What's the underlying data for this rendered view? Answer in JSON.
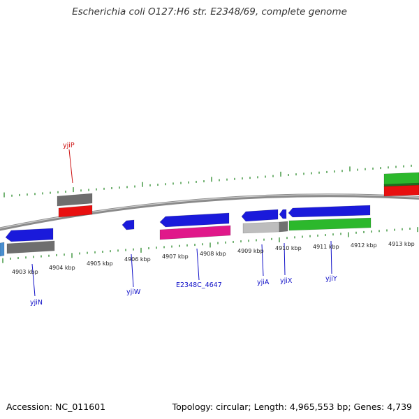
{
  "title": "Escherichia coli O127:H6 str. E2348/69, complete genome",
  "footer": {
    "accession": "Accession: NC_011601",
    "stats": "Topology: circular; Length: 4,965,553 bp; Genes: 4,739"
  },
  "colors": {
    "tick": "#2a8a2a",
    "backbone": "#7a7a7a",
    "blue": "#1a1adb",
    "gray": "#6e6e6e",
    "light_gray": "#bdbdbd",
    "red": "#e81010",
    "magenta": "#e0188a",
    "green": "#2cb82c",
    "label_blue": "#1010c8",
    "label_red": "#cc1010"
  },
  "kbp_labels": [
    {
      "id": "4903",
      "text": "4903 kbp"
    },
    {
      "id": "4904",
      "text": "4904 kbp"
    },
    {
      "id": "4905",
      "text": "4905 kbp"
    },
    {
      "id": "4906",
      "text": "4906 kbp"
    },
    {
      "id": "4907",
      "text": "4907 kbp"
    },
    {
      "id": "4908",
      "text": "4908 kbp"
    },
    {
      "id": "4909",
      "text": "4909 kbp"
    },
    {
      "id": "4910",
      "text": "4910 kbp"
    },
    {
      "id": "4911",
      "text": "4911 kbp"
    },
    {
      "id": "4912",
      "text": "4912 kbp"
    },
    {
      "id": "4913",
      "text": "4913 kbp"
    }
  ],
  "gene_labels": [
    {
      "id": "yjiP",
      "text": "yjiP",
      "color": "red"
    },
    {
      "id": "yjiN",
      "text": "yjiN",
      "color": "blue"
    },
    {
      "id": "yjiW",
      "text": "yjiW",
      "color": "blue"
    },
    {
      "id": "E2348C_4647",
      "text": "E2348C_4647",
      "color": "blue"
    },
    {
      "id": "yjiA",
      "text": "yjiA",
      "color": "blue"
    },
    {
      "id": "yjiX",
      "text": "yjiX",
      "color": "blue"
    },
    {
      "id": "yjiY",
      "text": "yjiY",
      "color": "blue"
    }
  ]
}
